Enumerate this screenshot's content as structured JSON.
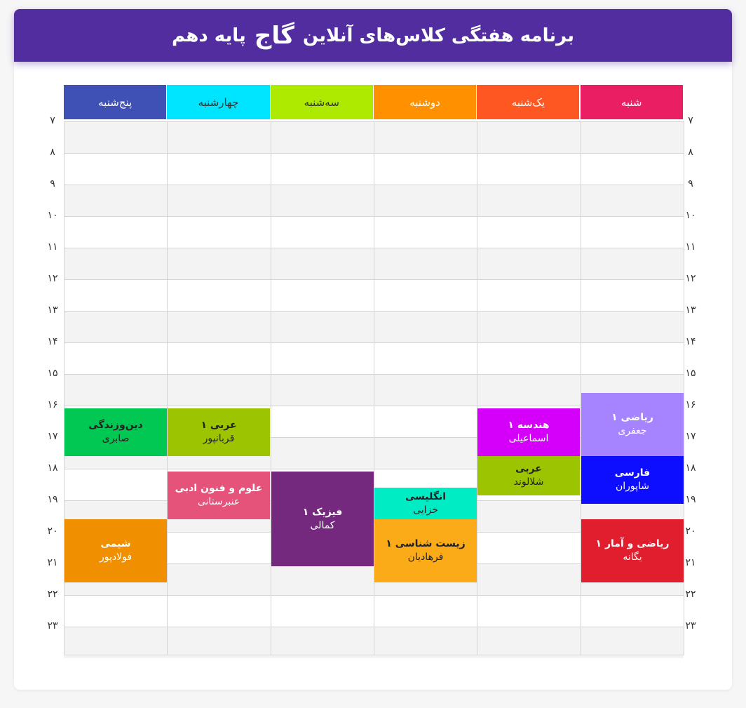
{
  "title": {
    "pre": "برنامه هفتگی کلاس‌های آنلاین",
    "brand": "گاج",
    "post": "پایه دهم"
  },
  "days": [
    {
      "name": "پنج‌شنبه",
      "color": "#3f51b5",
      "text_color": "#ffffff"
    },
    {
      "name": "چهارشنبه",
      "color": "#00e5ff",
      "text_color": "#333333"
    },
    {
      "name": "سه‌شنبه",
      "color": "#aeea00",
      "text_color": "#333333"
    },
    {
      "name": "دوشنبه",
      "color": "#ff9100",
      "text_color": "#ffffff"
    },
    {
      "name": "یک‌شنبه",
      "color": "#ff5722",
      "text_color": "#ffffff"
    },
    {
      "name": "شنبه",
      "color": "#e91e63",
      "text_color": "#ffffff"
    }
  ],
  "hours": [
    "۷",
    "۸",
    "۹",
    "۱۰",
    "۱۱",
    "۱۲",
    "۱۳",
    "۱۴",
    "۱۵",
    "۱۶",
    "۱۷",
    "۱۸",
    "۱۹",
    "۲۰",
    "۲۱",
    "۲۲",
    "۲۳"
  ],
  "classes": [
    {
      "day": "پنج‌شنبه",
      "subject": "دین‌وزندگی",
      "teacher": "صابری",
      "start": "16:00",
      "end": "17:30",
      "color": "#00c853",
      "text_color": "#222222"
    },
    {
      "day": "پنج‌شنبه",
      "subject": "شیمی",
      "teacher": "فولادپور",
      "start": "19:30",
      "end": "21:30",
      "color": "#f09000",
      "text_color": "#ffffff"
    },
    {
      "day": "چهارشنبه",
      "subject": "عربی ۱",
      "teacher": "قربانپور",
      "start": "16:00",
      "end": "17:30",
      "color": "#9cc400",
      "text_color": "#222222"
    },
    {
      "day": "چهارشنبه",
      "subject": "علوم و فنون ادبی",
      "teacher": "عنبرستانی",
      "start": "18:00",
      "end": "19:30",
      "color": "#e5527a",
      "text_color": "#ffffff"
    },
    {
      "day": "سه‌شنبه",
      "subject": "فیزیک ۱",
      "teacher": "کمالی",
      "start": "18:00",
      "end": "21:00",
      "color": "#74297f",
      "text_color": "#ffffff"
    },
    {
      "day": "دوشنبه",
      "subject": "انگلیسی",
      "teacher": "خزایی",
      "start": "18:30",
      "end": "19:30",
      "color": "#00ecc4",
      "text_color": "#222222"
    },
    {
      "day": "دوشنبه",
      "subject": "زیست شناسی ۱",
      "teacher": "فرهادیان",
      "start": "19:30",
      "end": "21:30",
      "color": "#fbab18",
      "text_color": "#222222"
    },
    {
      "day": "یک‌شنبه",
      "subject": "هندسه ۱",
      "teacher": "اسماعیلی",
      "start": "16:00",
      "end": "17:30",
      "color": "#d500f9",
      "text_color": "#ffffff"
    },
    {
      "day": "یک‌شنبه",
      "subject": "عربی",
      "teacher": "شلالوند",
      "start": "17:30",
      "end": "18:45",
      "color": "#9cc400",
      "text_color": "#222222"
    },
    {
      "day": "شنبه",
      "subject": "ریاضی ۱",
      "teacher": "جعفری",
      "start": "15:30",
      "end": "17:30",
      "color": "#a784ff",
      "text_color": "#ffffff"
    },
    {
      "day": "شنبه",
      "subject": "فارسی",
      "teacher": "شاپوران",
      "start": "17:30",
      "end": "19:00",
      "color": "#0d0dff",
      "text_color": "#ffffff"
    },
    {
      "day": "شنبه",
      "subject": "ریاضی و آمار ۱",
      "teacher": "یگانه",
      "start": "19:30",
      "end": "21:30",
      "color": "#e01e2e",
      "text_color": "#ffffff"
    }
  ]
}
